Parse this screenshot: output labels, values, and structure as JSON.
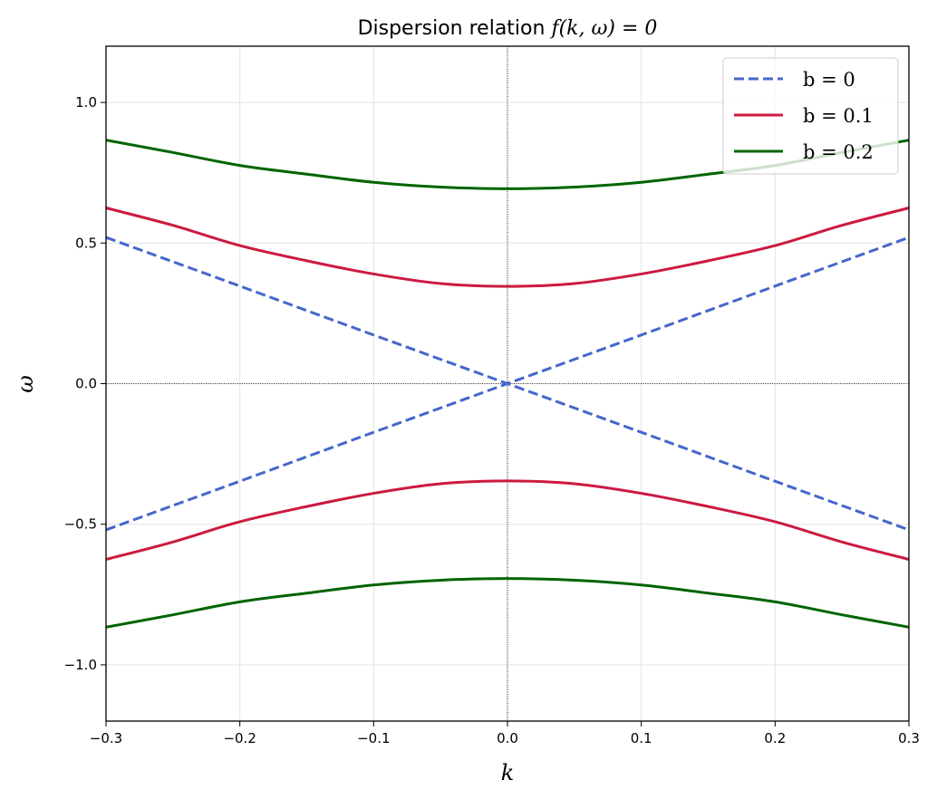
{
  "chart_data": {
    "type": "line",
    "title_prefix": "Dispersion relation ",
    "title_math": "f(k, ω) = 0",
    "xlabel": "k",
    "ylabel": "ω",
    "xlim": [
      -0.3,
      0.3
    ],
    "ylim": [
      -1.2,
      1.2
    ],
    "xticks": [
      -0.3,
      -0.2,
      -0.1,
      0.0,
      0.1,
      0.2,
      0.3
    ],
    "xtick_labels": [
      "−0.3",
      "−0.2",
      "−0.1",
      "0.0",
      "0.1",
      "0.2",
      "0.3"
    ],
    "yticks": [
      -1.0,
      -0.5,
      0.0,
      0.5,
      1.0
    ],
    "ytick_labels": [
      "−1.0",
      "−0.5",
      "0.0",
      "0.5",
      "1.0"
    ],
    "grid": true,
    "legend_position": "top-right",
    "series": [
      {
        "name": "b = 0",
        "color": "#4466cc",
        "style": "dashed",
        "branches": [
          {
            "x": [
              -0.3,
              -0.2,
              -0.1,
              0.0,
              0.1,
              0.2,
              0.3
            ],
            "y": [
              0.52,
              0.347,
              0.173,
              0.0,
              -0.173,
              -0.347,
              -0.52
            ]
          },
          {
            "x": [
              -0.3,
              -0.2,
              -0.1,
              0.0,
              0.1,
              0.2,
              0.3
            ],
            "y": [
              -0.52,
              -0.347,
              -0.173,
              0.0,
              0.173,
              0.347,
              0.52
            ]
          }
        ]
      },
      {
        "name": "b = 0.1",
        "color": "#cc1a40",
        "style": "solid",
        "branches": [
          {
            "x": [
              -0.3,
              -0.25,
              -0.2,
              -0.15,
              -0.1,
              -0.05,
              0.0,
              0.05,
              0.1,
              0.15,
              0.2,
              0.25,
              0.3
            ],
            "y": [
              0.625,
              0.563,
              0.491,
              0.437,
              0.39,
              0.356,
              0.346,
              0.356,
              0.39,
              0.437,
              0.491,
              0.563,
              0.625
            ]
          },
          {
            "x": [
              -0.3,
              -0.25,
              -0.2,
              -0.15,
              -0.1,
              -0.05,
              0.0,
              0.05,
              0.1,
              0.15,
              0.2,
              0.25,
              0.3
            ],
            "y": [
              -0.625,
              -0.563,
              -0.491,
              -0.437,
              -0.39,
              -0.356,
              -0.346,
              -0.356,
              -0.39,
              -0.437,
              -0.491,
              -0.563,
              -0.625
            ]
          }
        ]
      },
      {
        "name": "b = 0.2",
        "color": "#006400",
        "style": "solid",
        "branches": [
          {
            "x": [
              -0.3,
              -0.25,
              -0.2,
              -0.15,
              -0.1,
              -0.05,
              0.0,
              0.05,
              0.1,
              0.15,
              0.2,
              0.25,
              0.3
            ],
            "y": [
              0.866,
              0.822,
              0.776,
              0.745,
              0.716,
              0.699,
              0.693,
              0.699,
              0.716,
              0.745,
              0.776,
              0.822,
              0.866
            ]
          },
          {
            "x": [
              -0.3,
              -0.25,
              -0.2,
              -0.15,
              -0.1,
              -0.05,
              0.0,
              0.05,
              0.1,
              0.15,
              0.2,
              0.25,
              0.3
            ],
            "y": [
              -0.866,
              -0.822,
              -0.776,
              -0.745,
              -0.716,
              -0.699,
              -0.693,
              -0.699,
              -0.716,
              -0.745,
              -0.776,
              -0.822,
              -0.866
            ]
          }
        ]
      }
    ]
  }
}
